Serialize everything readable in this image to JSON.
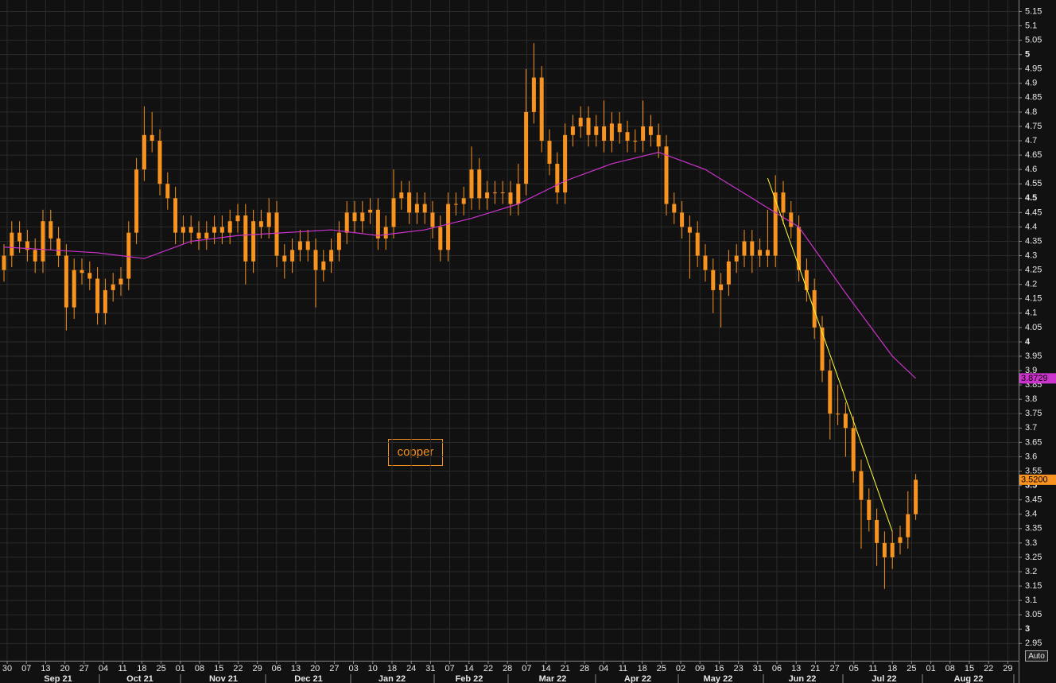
{
  "chart_data": {
    "type": "candlestick",
    "label": "copper",
    "auto_label": "Auto",
    "color": "#f7931e",
    "ylim": [
      2.89,
      5.19
    ],
    "yticks": [
      5.15,
      5.1,
      5.05,
      5,
      4.95,
      4.9,
      4.85,
      4.8,
      4.75,
      4.7,
      4.65,
      4.6,
      4.55,
      4.5,
      4.45,
      4.4,
      4.35,
      4.3,
      4.25,
      4.2,
      4.15,
      4.1,
      4.05,
      4,
      3.95,
      3.9,
      3.85,
      3.8,
      3.75,
      3.7,
      3.65,
      3.6,
      3.55,
      3.5,
      3.45,
      3.4,
      3.35,
      3.3,
      3.25,
      3.2,
      3.15,
      3.1,
      3.05,
      3,
      2.95
    ],
    "grid": true,
    "week_ticks": [
      "30",
      "07",
      "13",
      "20",
      "27",
      "04",
      "11",
      "18",
      "25",
      "01",
      "08",
      "15",
      "22",
      "29",
      "06",
      "13",
      "20",
      "27",
      "03",
      "10",
      "18",
      "24",
      "31",
      "07",
      "14",
      "22",
      "28",
      "07",
      "14",
      "21",
      "28",
      "04",
      "11",
      "18",
      "25",
      "02",
      "09",
      "16",
      "23",
      "31",
      "06",
      "13",
      "21",
      "27",
      "05",
      "11",
      "18",
      "25",
      "01",
      "08",
      "15",
      "22",
      "29"
    ],
    "months": [
      "Sep 21",
      "Oct 21",
      "Nov 21",
      "Dec 21",
      "Jan 22",
      "Feb 22",
      "Mar 22",
      "Apr 22",
      "May 22",
      "Jun 22",
      "Jul 22",
      "Aug 22"
    ],
    "candles": {
      "open": [
        4.25,
        4.3,
        4.38,
        4.35,
        4.32,
        4.28,
        4.42,
        4.36,
        4.3,
        4.12,
        4.25,
        4.24,
        4.22,
        4.1,
        4.18,
        4.2,
        4.22,
        4.38,
        4.6,
        4.72,
        4.7,
        4.55,
        4.5,
        4.38,
        4.4,
        4.38,
        4.36,
        4.38,
        4.4,
        4.38,
        4.42,
        4.44,
        4.28,
        4.42,
        4.4,
        4.45,
        4.3,
        4.28,
        4.32,
        4.35,
        4.32,
        4.25,
        4.28,
        4.32,
        4.38,
        4.45,
        4.42,
        4.45,
        4.46,
        4.36,
        4.4,
        4.5,
        4.52,
        4.45,
        4.48,
        4.45,
        4.4,
        4.32,
        4.48,
        4.48,
        4.5,
        4.6,
        4.5,
        4.52,
        4.52,
        4.52,
        4.48,
        4.55,
        4.8,
        4.92,
        4.7,
        4.62,
        4.52,
        4.72,
        4.75,
        4.78,
        4.72,
        4.75,
        4.7,
        4.76,
        4.73,
        4.7,
        4.7,
        4.75,
        4.72,
        4.68,
        4.48,
        4.45,
        4.4,
        4.38,
        4.3,
        4.25,
        4.18,
        4.2,
        4.28,
        4.3,
        4.35,
        4.3,
        4.32,
        4.3,
        4.52,
        4.45,
        4.4,
        4.25,
        4.18,
        4.05,
        3.9,
        3.75,
        3.75,
        3.7,
        3.55,
        3.45,
        3.38,
        3.3,
        3.25,
        3.3,
        3.32,
        3.4
      ],
      "high": [
        4.34,
        4.42,
        4.42,
        4.39,
        4.36,
        4.46,
        4.46,
        4.4,
        4.34,
        4.29,
        4.29,
        4.28,
        4.26,
        4.22,
        4.24,
        4.26,
        4.42,
        4.64,
        4.82,
        4.8,
        4.74,
        4.59,
        4.54,
        4.44,
        4.44,
        4.42,
        4.42,
        4.44,
        4.44,
        4.46,
        4.48,
        4.48,
        4.46,
        4.46,
        4.5,
        4.49,
        4.34,
        4.36,
        4.39,
        4.39,
        4.36,
        4.32,
        4.36,
        4.42,
        4.49,
        4.49,
        4.49,
        4.5,
        4.5,
        4.44,
        4.6,
        4.56,
        4.56,
        4.52,
        4.52,
        4.49,
        4.44,
        4.52,
        4.52,
        4.54,
        4.68,
        4.64,
        4.56,
        4.56,
        4.56,
        4.56,
        4.62,
        4.95,
        5.04,
        4.96,
        4.74,
        4.66,
        4.76,
        4.79,
        4.82,
        4.82,
        4.79,
        4.84,
        4.8,
        4.8,
        4.77,
        4.74,
        4.84,
        4.79,
        4.76,
        4.72,
        4.52,
        4.49,
        4.44,
        4.42,
        4.34,
        4.29,
        4.24,
        4.32,
        4.34,
        4.39,
        4.39,
        4.36,
        4.46,
        4.58,
        4.56,
        4.49,
        4.44,
        4.29,
        4.22,
        4.09,
        3.94,
        3.85,
        3.79,
        3.74,
        3.59,
        3.49,
        3.42,
        3.34,
        3.34,
        3.36,
        3.48,
        3.54
      ],
      "low": [
        4.21,
        4.26,
        4.31,
        4.28,
        4.24,
        4.24,
        4.32,
        4.26,
        4.04,
        4.08,
        4.2,
        4.18,
        4.06,
        4.06,
        4.14,
        4.16,
        4.18,
        4.34,
        4.56,
        4.66,
        4.51,
        4.46,
        4.34,
        4.34,
        4.34,
        4.32,
        4.32,
        4.34,
        4.34,
        4.34,
        4.38,
        4.2,
        4.24,
        4.36,
        4.36,
        4.26,
        4.22,
        4.24,
        4.28,
        4.28,
        4.12,
        4.21,
        4.24,
        4.28,
        4.34,
        4.38,
        4.38,
        4.41,
        4.32,
        4.32,
        4.36,
        4.46,
        4.41,
        4.41,
        4.41,
        4.36,
        4.28,
        4.28,
        4.44,
        4.44,
        4.46,
        4.46,
        4.46,
        4.48,
        4.48,
        4.44,
        4.44,
        4.51,
        4.76,
        4.66,
        4.58,
        4.48,
        4.48,
        4.68,
        4.71,
        4.68,
        4.68,
        4.66,
        4.66,
        4.69,
        4.66,
        4.66,
        4.66,
        4.68,
        4.64,
        4.44,
        4.41,
        4.36,
        4.22,
        4.26,
        4.21,
        4.1,
        4.05,
        4.16,
        4.24,
        4.26,
        4.24,
        4.26,
        4.26,
        4.26,
        4.41,
        4.36,
        4.21,
        4.14,
        4.01,
        3.86,
        3.66,
        3.71,
        3.6,
        3.51,
        3.28,
        3.34,
        3.22,
        3.14,
        3.21,
        3.26,
        3.28,
        3.38
      ],
      "close": [
        4.3,
        4.38,
        4.35,
        4.32,
        4.28,
        4.42,
        4.36,
        4.3,
        4.12,
        4.25,
        4.24,
        4.22,
        4.1,
        4.18,
        4.2,
        4.22,
        4.38,
        4.6,
        4.72,
        4.7,
        4.55,
        4.5,
        4.38,
        4.4,
        4.38,
        4.36,
        4.38,
        4.4,
        4.38,
        4.42,
        4.44,
        4.28,
        4.42,
        4.4,
        4.45,
        4.3,
        4.28,
        4.32,
        4.35,
        4.32,
        4.25,
        4.28,
        4.32,
        4.38,
        4.45,
        4.42,
        4.45,
        4.46,
        4.36,
        4.4,
        4.5,
        4.52,
        4.45,
        4.48,
        4.45,
        4.4,
        4.32,
        4.48,
        4.48,
        4.5,
        4.6,
        4.5,
        4.52,
        4.52,
        4.52,
        4.48,
        4.55,
        4.8,
        4.92,
        4.7,
        4.62,
        4.52,
        4.72,
        4.75,
        4.78,
        4.72,
        4.75,
        4.7,
        4.76,
        4.73,
        4.7,
        4.7,
        4.75,
        4.72,
        4.68,
        4.48,
        4.45,
        4.4,
        4.38,
        4.3,
        4.25,
        4.18,
        4.2,
        4.28,
        4.3,
        4.35,
        4.3,
        4.32,
        4.3,
        4.52,
        4.45,
        4.4,
        4.25,
        4.18,
        4.05,
        3.9,
        3.75,
        3.75,
        3.7,
        3.55,
        3.45,
        3.38,
        3.3,
        3.25,
        3.3,
        3.32,
        3.4,
        3.52
      ],
      "last_label": "3.5200"
    },
    "ma": {
      "color": "#cc33cc",
      "x": [
        0,
        6,
        12,
        18,
        24,
        30,
        36,
        42,
        48,
        54,
        60,
        66,
        72,
        78,
        84,
        90,
        96,
        102,
        108,
        114,
        117
      ],
      "values": [
        4.33,
        4.32,
        4.31,
        4.29,
        4.35,
        4.37,
        4.38,
        4.39,
        4.37,
        4.39,
        4.43,
        4.48,
        4.56,
        4.62,
        4.66,
        4.6,
        4.5,
        4.4,
        4.17,
        3.95,
        3.8729
      ],
      "last_label": "3.8729"
    },
    "trendline": {
      "color": "#ffff33",
      "x": [
        98,
        114
      ],
      "values": [
        4.57,
        3.34
      ]
    }
  }
}
